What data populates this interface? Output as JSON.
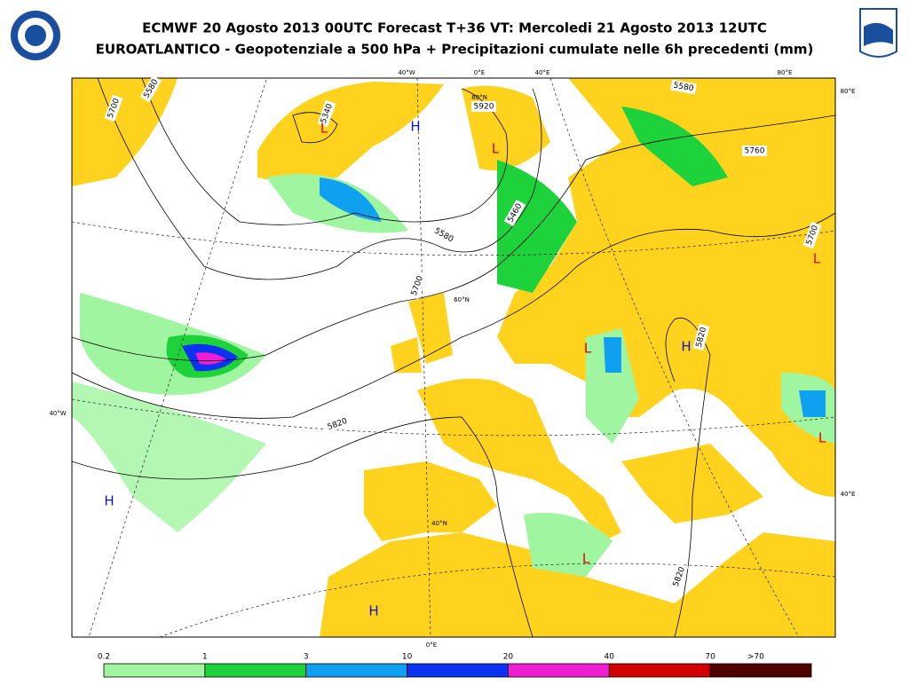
{
  "header": {
    "title": "ECMWF 20 Agosto 2013 00UTC Forecast T+36 VT: Mercoledi 21 Agosto 2013 12UTC",
    "subtitle": "EUROATLANTICO - Geopotenziale a 500 hPa + Precipitazioni cumulate nelle 6h precedenti (mm)"
  },
  "map": {
    "contour_labels": [
      "5700",
      "5580",
      "5340",
      "5460",
      "5580",
      "5700",
      "5820",
      "5820",
      "5580",
      "5760",
      "5700",
      "5820",
      "5920"
    ],
    "pressure_centers": [
      "L",
      "H",
      "L",
      "L",
      "H",
      "L",
      "L",
      "H",
      "H",
      "L"
    ],
    "grid_labels": [
      "40°W",
      "0°E",
      "40°E",
      "80°E",
      "80°E",
      "40°E",
      "40°W",
      "0°E",
      "80°N",
      "60°N",
      "40°N"
    ]
  },
  "legend": {
    "labels": [
      "0.2",
      "1",
      "3",
      "10",
      "20",
      "40",
      "70",
      ">70"
    ],
    "colors": [
      "#a0f5a0",
      "#1ed23c",
      "#10a0f0",
      "#0a32f0",
      "#f01ed2",
      "#d20000",
      "#500000"
    ]
  }
}
